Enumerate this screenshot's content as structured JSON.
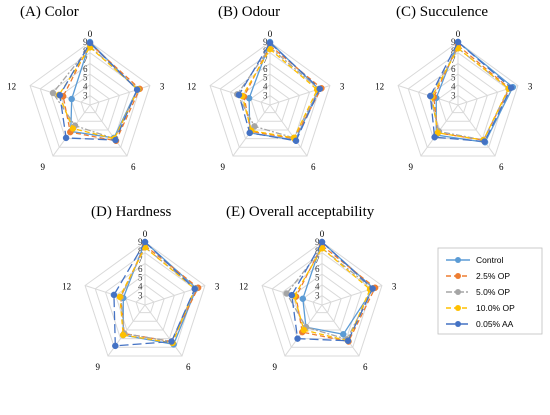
{
  "chart_data": [
    {
      "type": "radar",
      "title": "(A) Color",
      "axes": [
        "0",
        "3",
        "6",
        "9",
        "12"
      ],
      "rlim": [
        3,
        9
      ],
      "r_ticks": [
        3,
        4,
        5,
        6,
        7,
        8,
        9
      ],
      "series": [
        {
          "name": "Control",
          "values": [
            9.0,
            7.5,
            6.5,
            5.6,
            4.1
          ]
        },
        {
          "name": "2.5% OP",
          "values": [
            8.8,
            7.8,
            6.9,
            5.7,
            5.1
          ]
        },
        {
          "name": "5.0% OP",
          "values": [
            8.5,
            7.6,
            6.6,
            4.8,
            6.3
          ]
        },
        {
          "name": "10.0% OP",
          "values": [
            8.4,
            7.6,
            6.6,
            5.2,
            5.6
          ]
        },
        {
          "name": "0.05% AA",
          "values": [
            8.9,
            7.5,
            6.8,
            6.5,
            5.5
          ]
        }
      ],
      "grid": true
    },
    {
      "type": "radar",
      "title": "(B) Odour",
      "axes": [
        "0",
        "3",
        "6",
        "9",
        "12"
      ],
      "rlim": [
        3,
        9
      ],
      "r_ticks": [
        3,
        4,
        5,
        6,
        7,
        8,
        9
      ],
      "series": [
        {
          "name": "Control",
          "values": [
            9.0,
            7.7,
            6.8,
            5.8,
            4.4
          ]
        },
        {
          "name": "2.5% OP",
          "values": [
            8.6,
            8.0,
            6.6,
            5.6,
            5.0
          ]
        },
        {
          "name": "5.0% OP",
          "values": [
            8.4,
            7.7,
            6.5,
            4.9,
            5.8
          ]
        },
        {
          "name": "10.0% OP",
          "values": [
            8.2,
            7.5,
            6.5,
            5.5,
            5.2
          ]
        },
        {
          "name": "0.05% AA",
          "values": [
            8.9,
            7.8,
            6.9,
            5.8,
            5.6
          ]
        }
      ],
      "grid": true
    },
    {
      "type": "radar",
      "title": "(C) Succulence",
      "axes": [
        "0",
        "3",
        "6",
        "9",
        "12"
      ],
      "rlim": [
        3,
        9
      ],
      "r_ticks": [
        3,
        4,
        5,
        6,
        7,
        8,
        9
      ],
      "series": [
        {
          "name": "Control",
          "values": [
            9.0,
            8.4,
            7.1,
            6.1,
            4.5
          ]
        },
        {
          "name": "2.5% OP",
          "values": [
            8.6,
            8.0,
            6.8,
            5.8,
            4.8
          ]
        },
        {
          "name": "5.0% OP",
          "values": [
            8.3,
            7.9,
            6.8,
            5.6,
            5.2
          ]
        },
        {
          "name": "10.0% OP",
          "values": [
            8.3,
            7.9,
            6.8,
            5.8,
            5.0
          ]
        },
        {
          "name": "0.05% AA",
          "values": [
            9.0,
            8.2,
            7.0,
            6.4,
            5.2
          ]
        }
      ],
      "grid": true
    },
    {
      "type": "radar",
      "title": "(D) Hardness",
      "axes": [
        "0",
        "3",
        "6",
        "9",
        "12"
      ],
      "rlim": [
        3,
        9
      ],
      "r_ticks": [
        3,
        4,
        5,
        6,
        7,
        8,
        9
      ],
      "series": [
        {
          "name": "Control",
          "values": [
            9.0,
            8.0,
            7.4,
            6.1,
            4.5
          ]
        },
        {
          "name": "2.5% OP",
          "values": [
            8.6,
            8.2,
            7.0,
            5.9,
            4.8
          ]
        },
        {
          "name": "5.0% OP",
          "values": [
            8.4,
            7.9,
            7.0,
            5.9,
            4.8
          ]
        },
        {
          "name": "10.0% OP",
          "values": [
            8.4,
            7.8,
            7.2,
            6.1,
            4.9
          ]
        },
        {
          "name": "0.05% AA",
          "values": [
            9.0,
            7.8,
            7.0,
            7.6,
            5.6
          ]
        }
      ],
      "grid": true
    },
    {
      "type": "radar",
      "title": "(E) Overall acceptability",
      "axes": [
        "0",
        "3",
        "6",
        "9",
        "12"
      ],
      "rlim": [
        3,
        9
      ],
      "r_ticks": [
        3,
        4,
        5,
        6,
        7,
        8,
        9
      ],
      "series": [
        {
          "name": "Control",
          "values": [
            9.0,
            8.0,
            6.0,
            5.0,
            4.2
          ]
        },
        {
          "name": "2.5% OP",
          "values": [
            8.6,
            8.2,
            7.0,
            5.7,
            5.0
          ]
        },
        {
          "name": "5.0% OP",
          "values": [
            8.3,
            7.9,
            6.7,
            5.0,
            6.1
          ]
        },
        {
          "name": "10.0% OP",
          "values": [
            8.3,
            7.6,
            6.9,
            5.4,
            5.2
          ]
        },
        {
          "name": "0.05% AA",
          "values": [
            9.0,
            7.9,
            6.9,
            6.6,
            5.5
          ]
        }
      ],
      "grid": true
    }
  ],
  "legend": {
    "placement": "right",
    "items": [
      {
        "name": "Control",
        "color": "#5B9BD5",
        "dash": "solid",
        "marker": "circle"
      },
      {
        "name": "2.5% OP",
        "color": "#ED7D31",
        "dash": "dashed",
        "marker": "circle"
      },
      {
        "name": "5.0% OP",
        "color": "#A5A5A5",
        "dash": "dashdot",
        "marker": "circle"
      },
      {
        "name": "10.0% OP",
        "color": "#FFC000",
        "dash": "dashed",
        "marker": "circle"
      },
      {
        "name": "0.05% AA",
        "color": "#4472C4",
        "dash": "longdash",
        "marker": "circle"
      }
    ]
  },
  "colors": {
    "grid": "#D9D9D9"
  }
}
